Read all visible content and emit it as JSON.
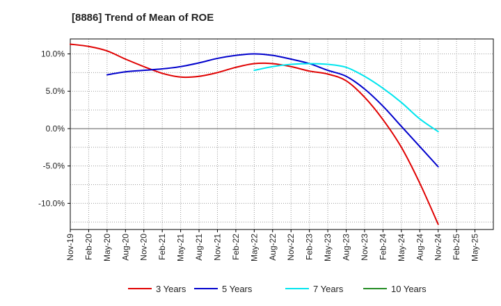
{
  "chart_data": {
    "type": "line",
    "title": "[8886]  Trend of Mean of ROE",
    "xlabel": "",
    "ylabel": "",
    "x": [
      "Nov-19",
      "Feb-20",
      "May-20",
      "Aug-20",
      "Nov-20",
      "Feb-21",
      "May-21",
      "Aug-21",
      "Nov-21",
      "Feb-22",
      "May-22",
      "Aug-22",
      "Nov-22",
      "Feb-23",
      "May-23",
      "Aug-23",
      "Nov-23",
      "Feb-24",
      "May-24",
      "Aug-24",
      "Nov-24",
      "Feb-25",
      "May-25"
    ],
    "ylim": [
      -13.5,
      12.0
    ],
    "yticks": [
      10,
      5,
      0,
      -5,
      -10
    ],
    "ytick_labels": [
      "10.0%",
      "5.0%",
      "0.0%",
      "-5.0%",
      "-10.0%"
    ],
    "grid": true,
    "legend_position": "bottom",
    "series": [
      {
        "name": "3 Years",
        "color": "#e00000",
        "values": [
          11.3,
          11.0,
          10.4,
          9.3,
          8.3,
          7.4,
          6.9,
          7.0,
          7.5,
          8.2,
          8.7,
          8.7,
          8.3,
          7.7,
          7.3,
          6.4,
          4.2,
          1.2,
          -2.5,
          -7.3,
          -12.8,
          null,
          null
        ]
      },
      {
        "name": "5 Years",
        "color": "#0000cc",
        "values": [
          null,
          null,
          7.2,
          7.6,
          7.8,
          8.0,
          8.3,
          8.8,
          9.4,
          9.8,
          10.0,
          9.8,
          9.3,
          8.7,
          7.8,
          7.0,
          5.3,
          3.0,
          0.3,
          -2.4,
          -5.1,
          null,
          null
        ]
      },
      {
        "name": "7 Years",
        "color": "#00e5ee",
        "values": [
          null,
          null,
          null,
          null,
          null,
          null,
          null,
          null,
          null,
          null,
          7.8,
          8.3,
          8.6,
          8.7,
          8.6,
          8.2,
          7.0,
          5.4,
          3.5,
          1.3,
          -0.4,
          null,
          null
        ]
      },
      {
        "name": "10 Years",
        "color": "#228b22",
        "values": [
          null,
          null,
          null,
          null,
          null,
          null,
          null,
          null,
          null,
          null,
          null,
          null,
          null,
          null,
          null,
          null,
          null,
          null,
          null,
          null,
          null,
          null,
          null
        ]
      }
    ]
  }
}
